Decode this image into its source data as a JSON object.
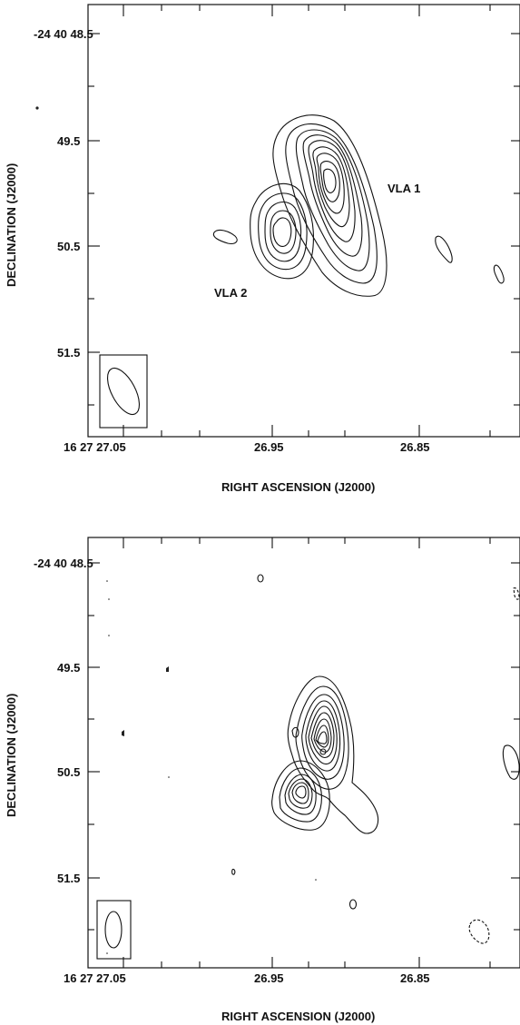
{
  "chart_data": [
    {
      "type": "contour",
      "xlabel": "RIGHT ASCENSION (J2000)",
      "ylabel": "DECLINATION (J2000)",
      "x_ticks": [
        {
          "value": 27.05,
          "label": "16 27 27.05"
        },
        {
          "value": 26.95,
          "label": "26.95"
        },
        {
          "value": 26.85,
          "label": "26.85"
        }
      ],
      "y_ticks": [
        {
          "value": 48.5,
          "label": "-24 40 48.5"
        },
        {
          "value": 49.5,
          "label": "49.5"
        },
        {
          "value": 50.5,
          "label": "50.5"
        },
        {
          "value": 51.5,
          "label": "51.5"
        }
      ],
      "xlim": [
        27.09,
        26.79
      ],
      "ylim": [
        52.2,
        48.2
      ],
      "sources": [
        {
          "name": "VLA 1",
          "ra_s": 26.915,
          "dec_s": 49.85
        },
        {
          "name": "VLA 2",
          "ra_s": 26.943,
          "dec_s": 50.4
        }
      ],
      "annotations": [
        "VLA 1",
        "VLA 2"
      ],
      "beam": {
        "position": "bottom-left",
        "shape": "ellipse, tilted"
      }
    },
    {
      "type": "contour",
      "xlabel": "RIGHT ASCENSION (J2000)",
      "ylabel": "DECLINATION (J2000)",
      "x_ticks": [
        {
          "value": 27.05,
          "label": "16 27 27.05"
        },
        {
          "value": 26.95,
          "label": "26.95"
        },
        {
          "value": 26.85,
          "label": "26.85"
        }
      ],
      "y_ticks": [
        {
          "value": 48.5,
          "label": "-24 40 48.5"
        },
        {
          "value": 49.5,
          "label": "49.5"
        },
        {
          "value": 50.5,
          "label": "50.5"
        },
        {
          "value": 51.5,
          "label": "51.5"
        }
      ],
      "xlim": [
        27.09,
        26.79
      ],
      "ylim": [
        52.2,
        48.2
      ],
      "sources": [
        {
          "ra_s": 26.908,
          "dec_s": 50.2
        },
        {
          "ra_s": 26.93,
          "dec_s": 50.8
        }
      ],
      "beam": {
        "position": "bottom-left",
        "shape": "ellipse, vertical"
      }
    }
  ]
}
